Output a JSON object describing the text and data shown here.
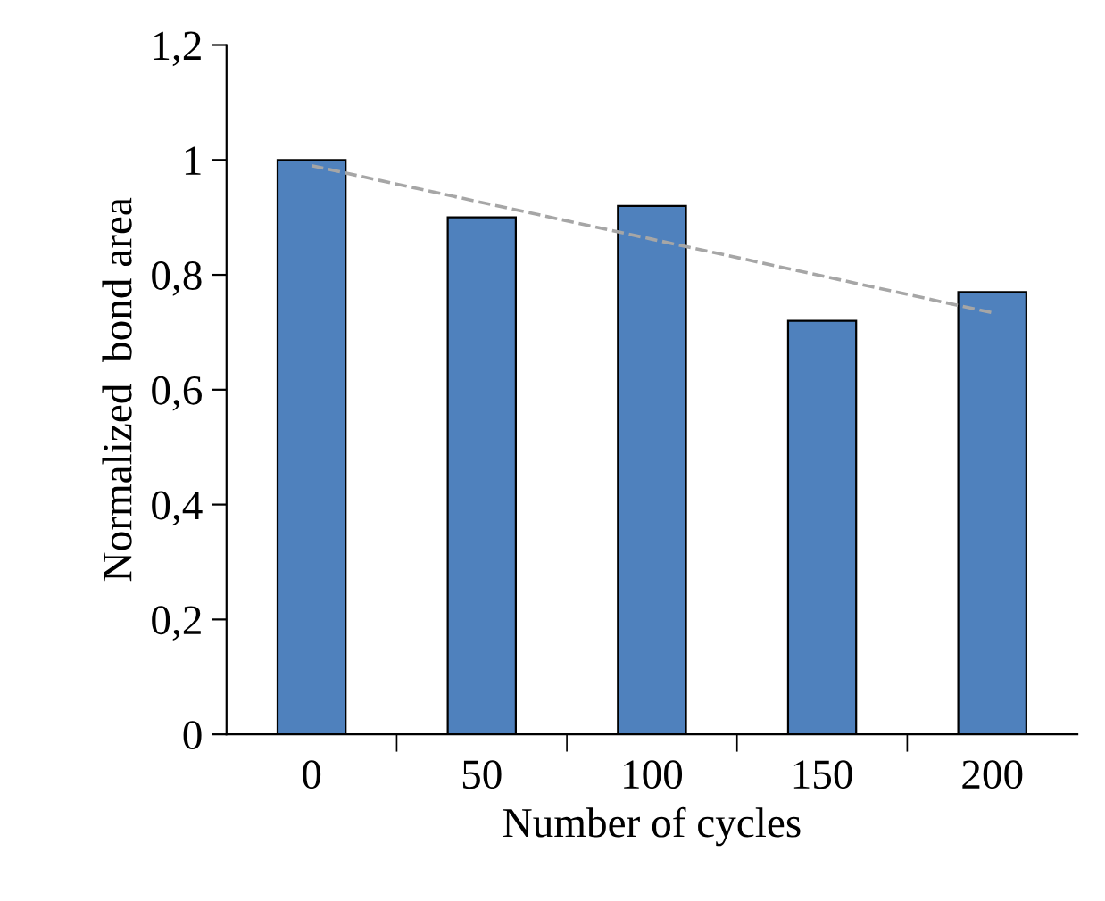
{
  "chart_data": {
    "type": "bar",
    "xlabel": "Number of cycles",
    "ylabel": "Normalized  bond area",
    "categories": [
      "0",
      "50",
      "100",
      "150",
      "200"
    ],
    "series": [
      {
        "color": "#4f81bd",
        "values": [
          1.0,
          0.9,
          0.92,
          0.72,
          0.77
        ]
      },
      {
        "type": "line",
        "color": "#a6a6a6",
        "line_style": "dashed",
        "values": [
          0.99,
          0.926,
          0.862,
          0.798,
          0.734
        ]
      }
    ],
    "ylim": [
      0,
      1.2
    ],
    "yticks": [
      0,
      {
        "value": 0.2,
        "label": "0,2"
      },
      {
        "value": 0.4,
        "label": "0,4"
      },
      {
        "value": 0.6,
        "label": "0,6"
      },
      {
        "value": 0.8,
        "label": "0,8"
      },
      1,
      {
        "value": 1.2,
        "label": "1,2"
      }
    ],
    "grid": false,
    "legend": false
  }
}
